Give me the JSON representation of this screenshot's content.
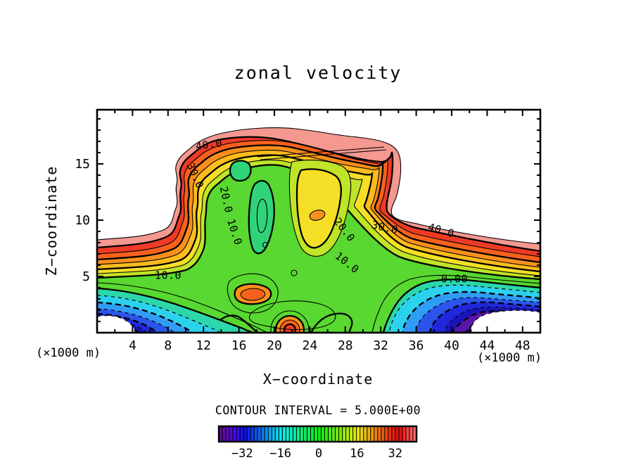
{
  "chart_data": {
    "type": "contour",
    "title": "zonal velocity",
    "xlabel": "X−coordinate",
    "ylabel": "Z−coordinate",
    "x_unit_label_left": "(×1000 m)",
    "x_unit_label_right": "(×1000 m)",
    "x_range": [
      0,
      50
    ],
    "z_range": [
      0,
      19.8
    ],
    "x_major_ticks": [
      4,
      8,
      12,
      16,
      20,
      24,
      28,
      32,
      36,
      40,
      44,
      48
    ],
    "x_minor_ticks": [
      2,
      6,
      10,
      14,
      18,
      22,
      26,
      30,
      34,
      38,
      42,
      46,
      50
    ],
    "y_major_ticks": [
      5,
      10,
      15
    ],
    "y_minor_ticks": [
      1,
      2,
      3,
      4,
      6,
      7,
      8,
      9,
      11,
      12,
      13,
      14,
      16,
      17,
      18,
      19
    ],
    "contour_interval": 5,
    "contour_interval_label": "CONTOUR INTERVAL = 5.000E+00",
    "contour_levels_thick": [
      0,
      10,
      20,
      30,
      40
    ],
    "contour_levels_thin": [
      5,
      15,
      25,
      35,
      45
    ],
    "negative_levels_dashed": [
      -5,
      -10,
      -15,
      -20,
      -25,
      -30,
      -35
    ],
    "contour_labels": [
      {
        "text": "40.0",
        "x": 297,
        "y": 206,
        "rot": -8
      },
      {
        "text": "30.0",
        "x": 277,
        "y": 250,
        "rot": 66
      },
      {
        "text": "20.0",
        "x": 321,
        "y": 284,
        "rot": 78
      },
      {
        "text": "10.0",
        "x": 333,
        "y": 330,
        "rot": 72
      },
      {
        "text": "10.0",
        "x": 239,
        "y": 392,
        "rot": 0
      },
      {
        "text": "20.0",
        "x": 489,
        "y": 327,
        "rot": 52
      },
      {
        "text": "10.0",
        "x": 493,
        "y": 374,
        "rot": 38
      },
      {
        "text": "30.0",
        "x": 547,
        "y": 324,
        "rot": 13
      },
      {
        "text": "40.0",
        "x": 627,
        "y": 328,
        "rot": 16
      },
      {
        "text": "0.00",
        "x": 646,
        "y": 397,
        "rot": 0
      }
    ],
    "colorbar": {
      "vmin": -41.8,
      "vmax": 40.9,
      "cells": 56,
      "ticks": [
        {
          "value": -32,
          "label": "−32"
        },
        {
          "value": -16,
          "label": "−16"
        },
        {
          "value": 0,
          "label": "0"
        },
        {
          "value": 16,
          "label": "16"
        },
        {
          "value": 32,
          "label": "32"
        }
      ]
    },
    "fill_colors": {
      "salmon": "#f49890",
      "red": "#ee3a26",
      "redorange": "#f8611d",
      "orange": "#fa8f1b",
      "orangeyellow": "#fdbb1c",
      "yellow": "#f4df26",
      "yellowgreen": "#c0e427",
      "green": "#58d830",
      "spring": "#2fd479",
      "teal": "#2cd8aa",
      "cyan": "#2bd2ee",
      "skyblue": "#2f9df4",
      "blue": "#2b55ea",
      "deepblue": "#2028dc",
      "navy": "#1a14b8",
      "purple": "#5a14a8",
      "darkpurple": "#380a70",
      "line": "#000000",
      "background": "#ffffff"
    }
  }
}
